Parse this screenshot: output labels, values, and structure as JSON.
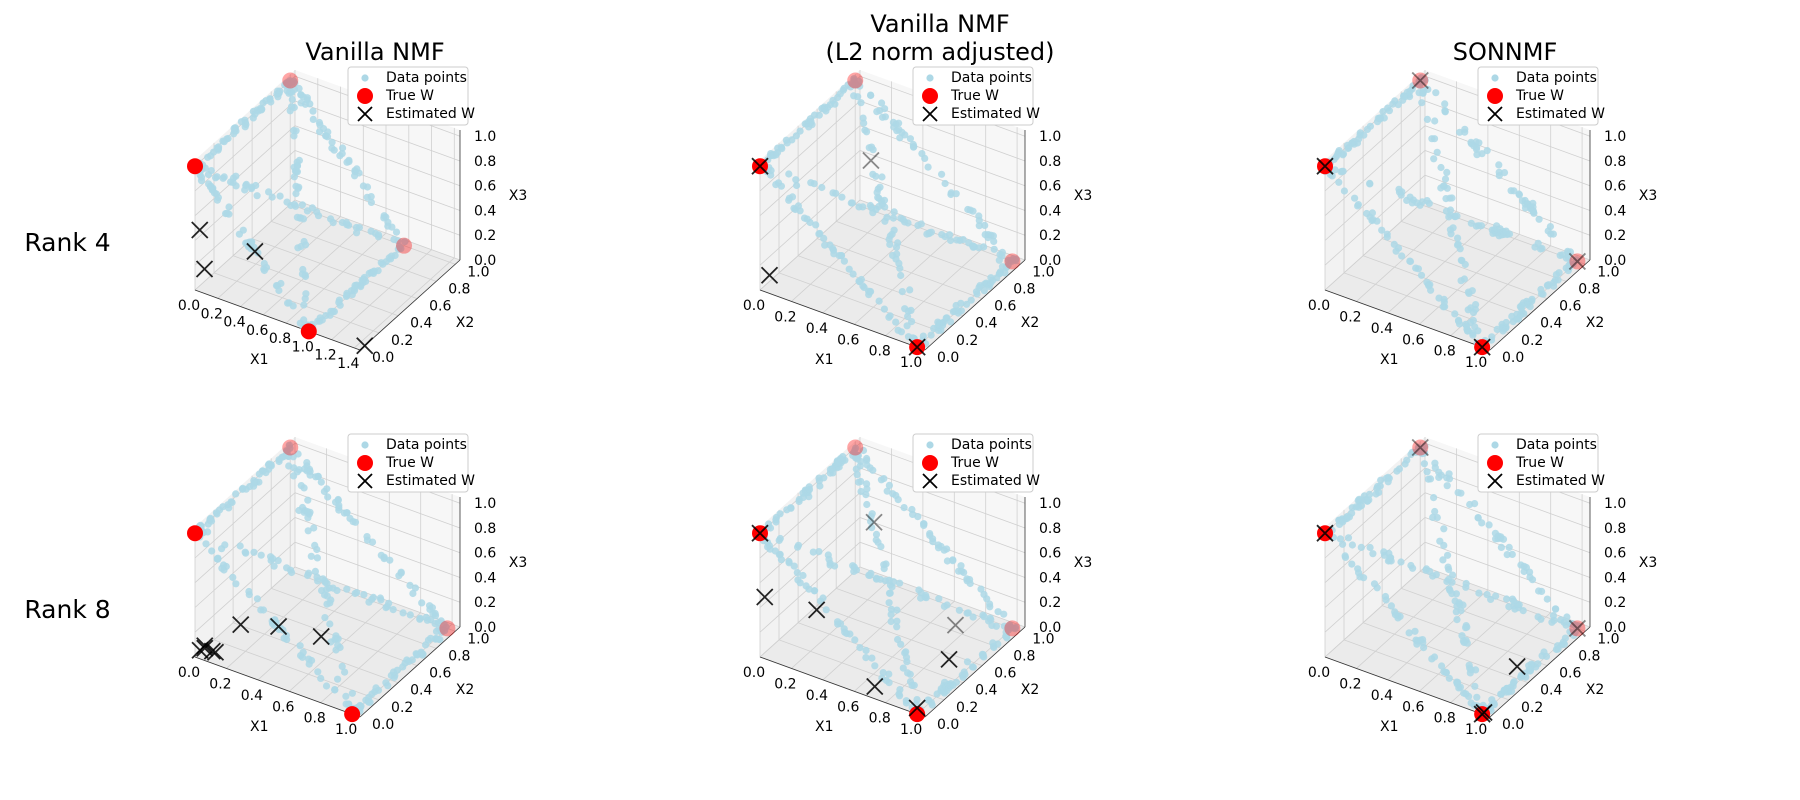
{
  "figure": {
    "row_labels": [
      "Rank 4",
      "Rank 8"
    ],
    "column_titles": [
      [
        "Vanilla NMF"
      ],
      [
        "Vanilla NMF",
        "(L2 norm adjusted)"
      ],
      [
        "SONNMF"
      ]
    ]
  },
  "chart_data": [
    {
      "type": "scatter3d",
      "title": "Vanilla NMF",
      "row_label": "Rank 4",
      "xlabel": "X1",
      "ylabel": "X2",
      "zlabel": "X3",
      "xlim": [
        0,
        1.45
      ],
      "ylim": [
        0,
        1.05
      ],
      "zlim": [
        0,
        1.05
      ],
      "xticks": [
        "0.0",
        "0.2",
        "0.4",
        "0.6",
        "0.8",
        "1.0",
        "1.2",
        "1.4"
      ],
      "yticks": [
        "0.0",
        "0.2",
        "0.4",
        "0.6",
        "0.8",
        "1.0"
      ],
      "zticks": [
        "0.0",
        "0.2",
        "0.4",
        "0.6",
        "0.8",
        "1.0"
      ],
      "legend": [
        "Data points",
        "True W",
        "Estimated W"
      ],
      "true_w": [
        [
          0,
          0,
          1
        ],
        [
          1,
          0,
          0
        ],
        [
          0,
          1,
          1
        ],
        [
          1,
          1,
          0
        ]
      ],
      "estimated_w": [
        [
          0,
          0.05,
          0.45
        ],
        [
          0,
          0.1,
          0.1
        ],
        [
          0.15,
          0.45,
          0.05
        ],
        [
          1.45,
          0.05,
          0
        ]
      ]
    },
    {
      "type": "scatter3d",
      "title": "Vanilla NMF (L2 norm adjusted)",
      "row_label": "Rank 4",
      "xlabel": "X1",
      "ylabel": "X2",
      "zlabel": "X3",
      "xlim": [
        0,
        1.05
      ],
      "ylim": [
        0,
        1.05
      ],
      "zlim": [
        0,
        1.05
      ],
      "xticks": [
        "0.0",
        "0.2",
        "0.4",
        "0.6",
        "0.8",
        "1.0"
      ],
      "yticks": [
        "0.0",
        "0.2",
        "0.4",
        "0.6",
        "0.8",
        "1.0"
      ],
      "zticks": [
        "0.0",
        "0.2",
        "0.4",
        "0.6",
        "0.8",
        "1.0"
      ],
      "legend": [
        "Data points",
        "True W",
        "Estimated W"
      ],
      "true_w": [
        [
          0,
          0,
          1
        ],
        [
          1,
          0,
          0
        ],
        [
          0,
          1,
          1
        ],
        [
          1,
          1,
          0
        ]
      ],
      "estimated_w": [
        [
          0,
          0,
          1
        ],
        [
          1,
          0,
          0
        ],
        [
          0,
          0.1,
          0.05
        ],
        [
          0.1,
          1,
          0.4
        ]
      ]
    },
    {
      "type": "scatter3d",
      "title": "SONNMF",
      "row_label": "Rank 4",
      "xlabel": "X1",
      "ylabel": "X2",
      "zlabel": "X3",
      "xlim": [
        0,
        1.05
      ],
      "ylim": [
        0,
        1.05
      ],
      "zlim": [
        0,
        1.05
      ],
      "xticks": [
        "0.0",
        "0.2",
        "0.4",
        "0.6",
        "0.8",
        "1.0"
      ],
      "yticks": [
        "0.0",
        "0.2",
        "0.4",
        "0.6",
        "0.8",
        "1.0"
      ],
      "zticks": [
        "0.0",
        "0.2",
        "0.4",
        "0.6",
        "0.8",
        "1.0"
      ],
      "legend": [
        "Data points",
        "True W",
        "Estimated W"
      ],
      "true_w": [
        [
          0,
          0,
          1
        ],
        [
          1,
          0,
          0
        ],
        [
          0,
          1,
          1
        ],
        [
          1,
          1,
          0
        ]
      ],
      "estimated_w": [
        [
          0,
          0,
          1
        ],
        [
          1,
          0,
          0
        ],
        [
          0,
          1,
          1
        ],
        [
          1,
          1,
          0
        ]
      ]
    },
    {
      "type": "scatter3d",
      "title": "Vanilla NMF",
      "row_label": "Rank 8",
      "xlabel": "X1",
      "ylabel": "X2",
      "zlabel": "X3",
      "xlim": [
        0,
        1.05
      ],
      "ylim": [
        0,
        1.05
      ],
      "zlim": [
        0,
        1.05
      ],
      "xticks": [
        "0.0",
        "0.2",
        "0.4",
        "0.6",
        "0.8",
        "1.0"
      ],
      "yticks": [
        "0.0",
        "0.2",
        "0.4",
        "0.6",
        "0.8",
        "1.0"
      ],
      "zticks": [
        "0.0",
        "0.2",
        "0.4",
        "0.6",
        "0.8",
        "1.0"
      ],
      "legend": [
        "Data points",
        "True W",
        "Estimated W"
      ],
      "true_w": [
        [
          0,
          0,
          1
        ],
        [
          1,
          0,
          0
        ],
        [
          0,
          1,
          1
        ],
        [
          1,
          1,
          0
        ]
      ],
      "estimated_w": [
        [
          0.02,
          0.02,
          0.05
        ],
        [
          0.05,
          0.02,
          0.08
        ],
        [
          0.08,
          0.05,
          0.05
        ],
        [
          0.1,
          0.05,
          0.05
        ],
        [
          0.2,
          0.15,
          0.25
        ],
        [
          0.35,
          0.3,
          0.2
        ],
        [
          0.5,
          0.5,
          0.05
        ],
        [
          0.05,
          0.02,
          0.1
        ]
      ]
    },
    {
      "type": "scatter3d",
      "title": "Vanilla NMF (L2 norm adjusted)",
      "row_label": "Rank 8",
      "xlabel": "X1",
      "ylabel": "X2",
      "zlabel": "X3",
      "xlim": [
        0,
        1.05
      ],
      "ylim": [
        0,
        1.05
      ],
      "zlim": [
        0,
        1.05
      ],
      "xticks": [
        "0.0",
        "0.2",
        "0.4",
        "0.6",
        "0.8",
        "1.0"
      ],
      "yticks": [
        "0.0",
        "0.2",
        "0.4",
        "0.6",
        "0.8",
        "1.0"
      ],
      "zticks": [
        "0.0",
        "0.2",
        "0.4",
        "0.6",
        "0.8",
        "1.0"
      ],
      "legend": [
        "Data points",
        "True W",
        "Estimated W"
      ],
      "true_w": [
        [
          0,
          0,
          1
        ],
        [
          1,
          0,
          0
        ],
        [
          0,
          1,
          1
        ],
        [
          1,
          1,
          0
        ]
      ],
      "estimated_w": [
        [
          0,
          0,
          1
        ],
        [
          1,
          0,
          0.05
        ],
        [
          0,
          0.05,
          0.45
        ],
        [
          0.3,
          0.1,
          0.45
        ],
        [
          0.7,
          0.05,
          0.05
        ],
        [
          0.85,
          0.65,
          0.2
        ],
        [
          0.9,
          0.5,
          0.05
        ],
        [
          0.15,
          0.95,
          0.5
        ]
      ]
    },
    {
      "type": "scatter3d",
      "title": "SONNMF",
      "row_label": "Rank 8",
      "xlabel": "X1",
      "ylabel": "X2",
      "zlabel": "X3",
      "xlim": [
        0,
        1.05
      ],
      "ylim": [
        0,
        1.05
      ],
      "zlim": [
        0,
        1.05
      ],
      "xticks": [
        "0.0",
        "0.2",
        "0.4",
        "0.6",
        "0.8",
        "1.0"
      ],
      "yticks": [
        "0.0",
        "0.2",
        "0.4",
        "0.6",
        "0.8",
        "1.0"
      ],
      "zticks": [
        "0.0",
        "0.2",
        "0.4",
        "0.6",
        "0.8",
        "1.0"
      ],
      "legend": [
        "Data points",
        "True W",
        "Estimated W"
      ],
      "true_w": [
        [
          0,
          0,
          1
        ],
        [
          1,
          0,
          0
        ],
        [
          0,
          1,
          1
        ],
        [
          1,
          1,
          0
        ]
      ],
      "estimated_w": [
        [
          0,
          0,
          1
        ],
        [
          1,
          0,
          0
        ],
        [
          1,
          0.02,
          0
        ],
        [
          0,
          1,
          1
        ],
        [
          1,
          1,
          0
        ],
        [
          0.95,
          0.45,
          0.05
        ]
      ]
    }
  ],
  "style": {
    "data_color": "#add8e6",
    "true_w_color": "#ff0000",
    "estimated_w_color": "#000000",
    "pane_color": "#f2f2f2",
    "grid_color": "#d0d0d0"
  }
}
